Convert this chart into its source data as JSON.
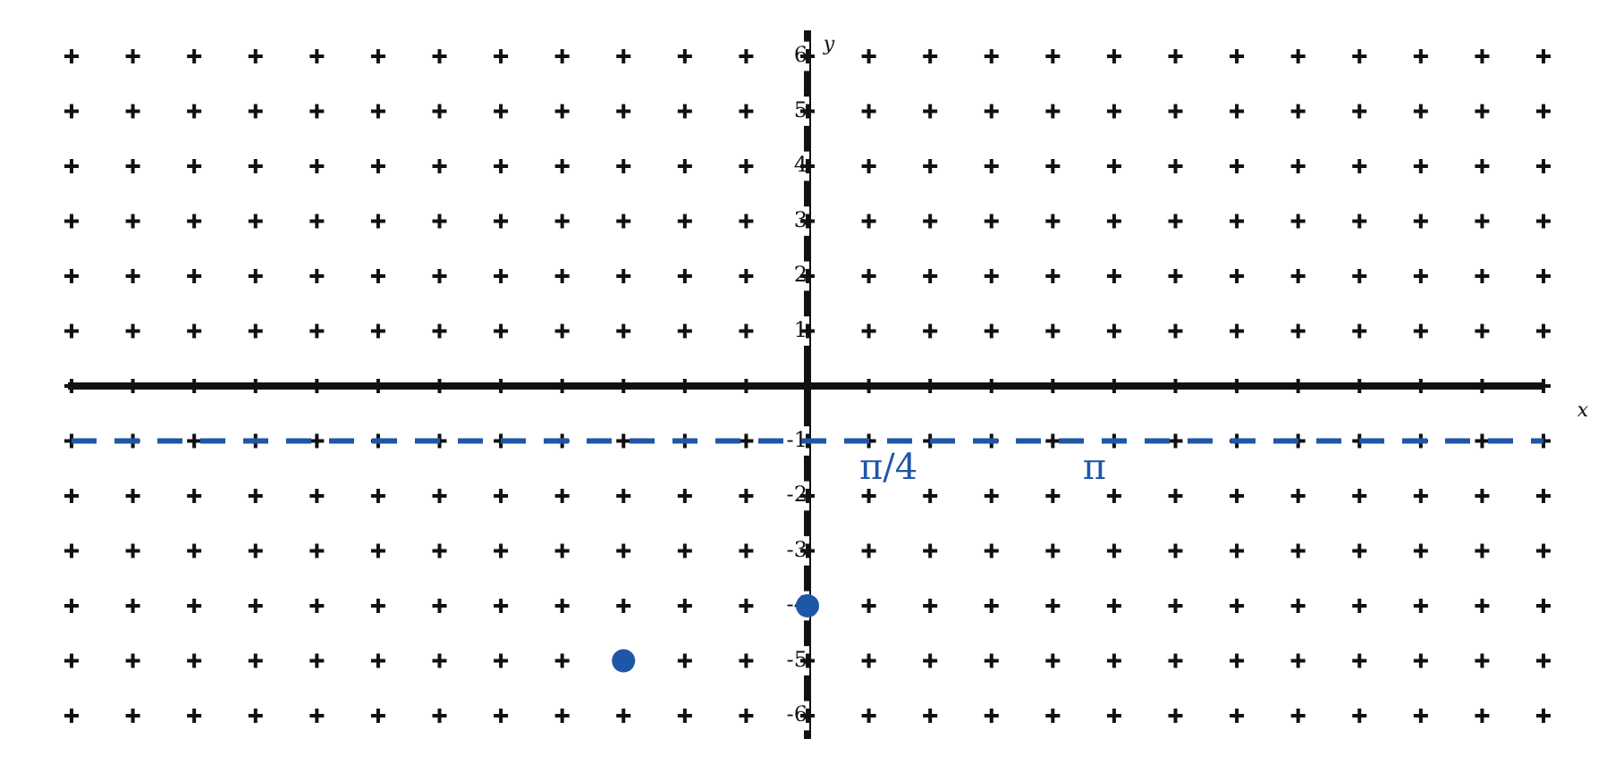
{
  "chart_data": {
    "type": "scatter",
    "xlabel": "x",
    "ylabel": "y",
    "categories": [
      null,
      null,
      null,
      null,
      null,
      null,
      null,
      null,
      null,
      null,
      null,
      null,
      null,
      null,
      null,
      null,
      null,
      null,
      null,
      null,
      null,
      null,
      null,
      null,
      null
    ],
    "ylim": [
      -6.4,
      6.4
    ],
    "yticks": [
      -6,
      -5,
      -4,
      -3,
      -2,
      -1,
      1,
      2,
      3,
      4,
      5,
      6
    ],
    "tick_labels": "y",
    "grid": true,
    "marker": "circle",
    "legend": false,
    "series": [
      {
        "type": "line",
        "line_style": "dashed",
        "marker": "none",
        "color": "#1f57a8",
        "values": [
          -1,
          -1,
          -1,
          -1,
          -1,
          -1,
          -1,
          -1,
          -1,
          -1,
          -1,
          -1,
          -1,
          -1,
          -1,
          -1,
          -1,
          -1,
          -1,
          -1,
          -1,
          -1,
          -1,
          -1,
          -1
        ]
      },
      {
        "color": "#1f57a8",
        "values": [
          null,
          null,
          null,
          null,
          null,
          null,
          null,
          null,
          null,
          -5,
          null,
          null,
          -4,
          null,
          null,
          null,
          null,
          null,
          null,
          null,
          null,
          null,
          null,
          null,
          null
        ]
      }
    ],
    "annotations": [
      "π/4",
      "π"
    ]
  }
}
